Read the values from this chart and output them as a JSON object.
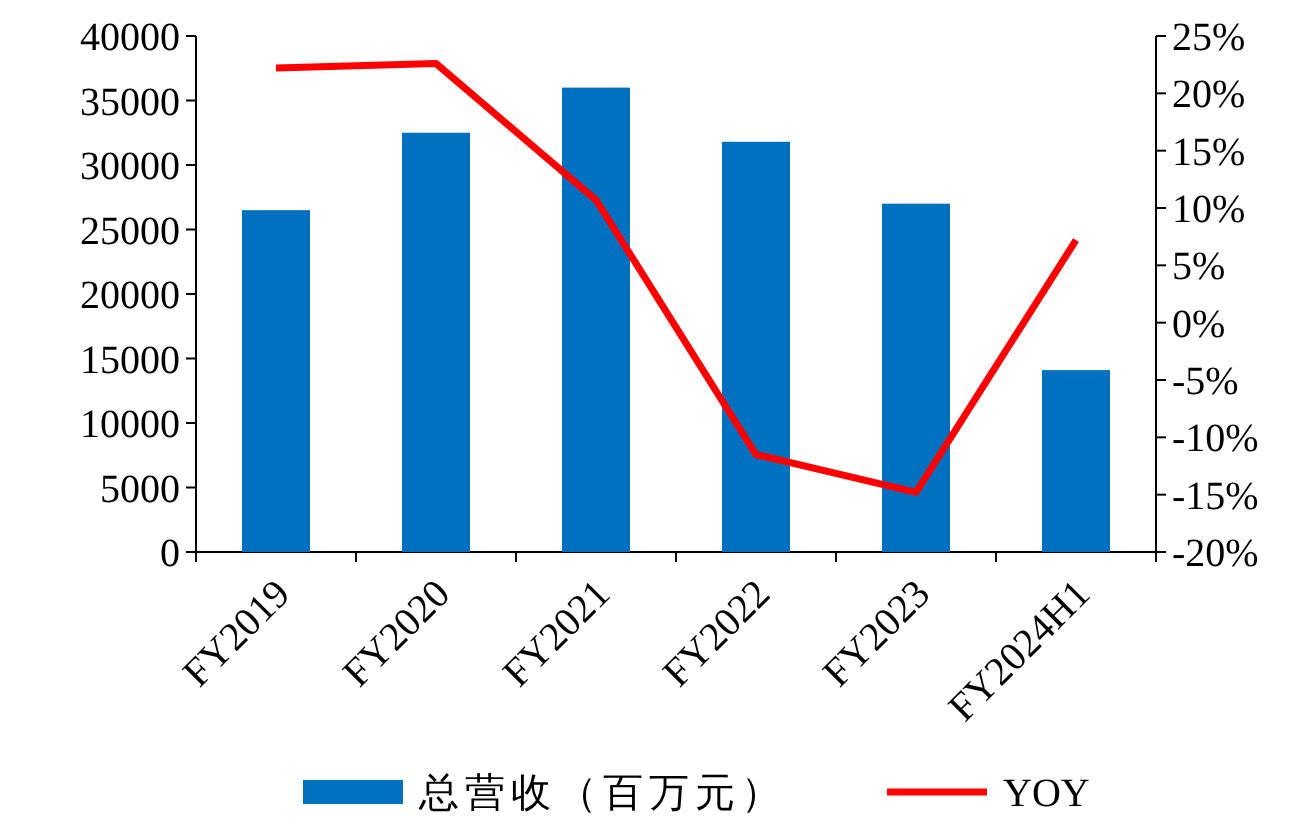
{
  "chart_data": {
    "type": "bar",
    "categories": [
      "FY2019",
      "FY2020",
      "FY2021",
      "FY2022",
      "FY2023",
      "FY2024H1"
    ],
    "series": [
      {
        "name": "总营收（百万元）",
        "color": "#0070c0",
        "values": [
          26500,
          32500,
          36000,
          31800,
          27000,
          14100
        ]
      },
      {
        "name": "YOY",
        "type": "line",
        "axis": "y2",
        "color": "#ff0000",
        "values": [
          22.2,
          22.6,
          10.7,
          -11.5,
          -14.8,
          7.2
        ]
      }
    ],
    "ylim": [
      0,
      40000
    ],
    "yticks": [
      0,
      5000,
      10000,
      15000,
      20000,
      25000,
      30000,
      35000,
      40000
    ],
    "y2lim": [
      -20,
      25
    ],
    "y2ticks": [
      {
        "value": -20,
        "label": "-20%"
      },
      {
        "value": -15,
        "label": "-15%"
      },
      {
        "value": -10,
        "label": "-10%"
      },
      {
        "value": -5,
        "label": "-5%"
      },
      {
        "value": 0,
        "label": "0%"
      },
      {
        "value": 5,
        "label": "5%"
      },
      {
        "value": 10,
        "label": "10%"
      },
      {
        "value": 15,
        "label": "15%"
      },
      {
        "value": 20,
        "label": "20%"
      },
      {
        "value": 25,
        "label": "25%"
      }
    ],
    "legend": "bottom",
    "grid": false,
    "marker": "none"
  }
}
